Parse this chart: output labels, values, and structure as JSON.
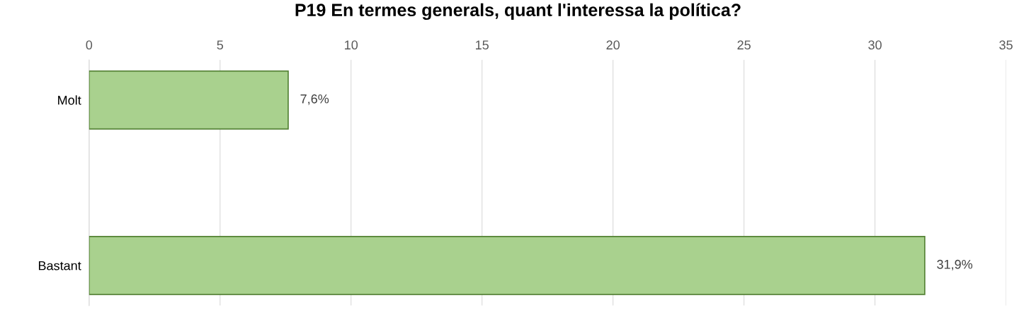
{
  "chart_data": {
    "type": "bar",
    "orientation": "horizontal",
    "title": "P19 En termes generals, quant l'interessa la política?",
    "categories": [
      "Molt",
      "Bastant"
    ],
    "values": [
      7.6,
      31.9
    ],
    "value_labels": [
      "7,6%",
      "31,9%"
    ],
    "color": "#a9d18e",
    "xlim": [
      0,
      35
    ],
    "xticks": [
      0,
      5,
      10,
      15,
      20,
      25,
      30,
      35
    ],
    "grid": "x",
    "legend": false
  }
}
